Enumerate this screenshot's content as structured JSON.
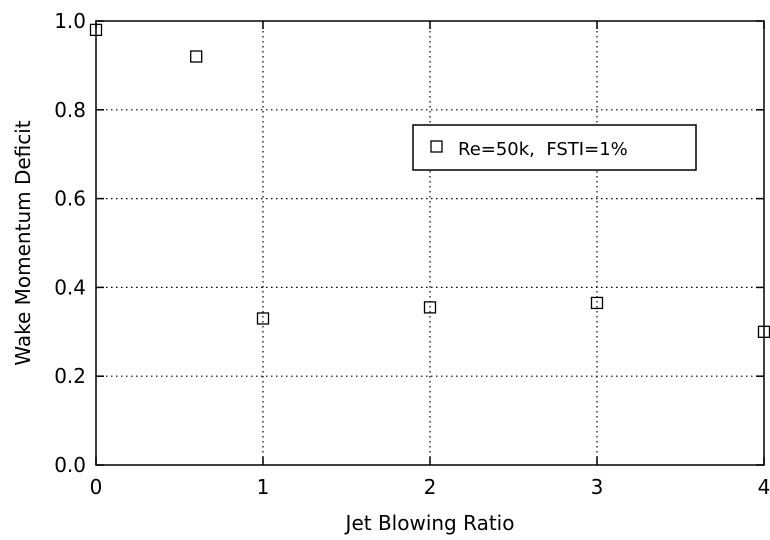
{
  "chart_data": {
    "type": "scatter",
    "title": "",
    "xlabel": "Jet Blowing Ratio",
    "ylabel": "Wake Momentum Deficit",
    "xlim": [
      0,
      4
    ],
    "ylim": [
      0.0,
      1.0
    ],
    "xticks": [
      0,
      1,
      2,
      3,
      4
    ],
    "xtick_labels": [
      "0",
      "1",
      "2",
      "3",
      "4"
    ],
    "yticks": [
      0.0,
      0.2,
      0.4,
      0.6,
      0.8,
      1.0
    ],
    "ytick_labels": [
      "0.0",
      "0.2",
      "0.4",
      "0.6",
      "0.8",
      "1.0"
    ],
    "grid": true,
    "legend_position": "upper-right",
    "series": [
      {
        "name": "Re=50k,  FSTI=1%",
        "marker": "open-square",
        "color": "#000000",
        "x": [
          0,
          0.6,
          1,
          2,
          3,
          4
        ],
        "y": [
          0.98,
          0.92,
          0.33,
          0.355,
          0.365,
          0.3
        ]
      }
    ]
  }
}
